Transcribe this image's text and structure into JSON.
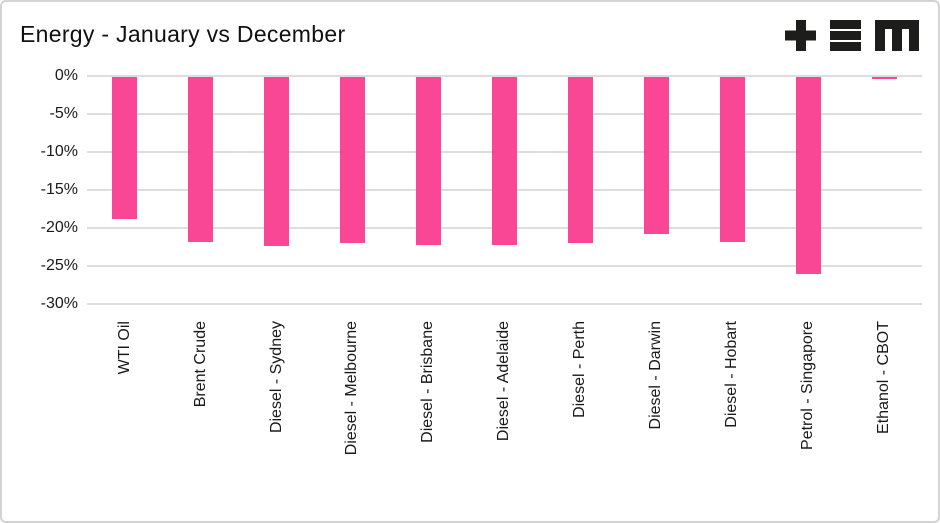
{
  "header": {
    "title": "Energy - January vs December"
  },
  "logo": {
    "name": "tem-logo",
    "glyphs": [
      "plus",
      "triple-bar",
      "m"
    ],
    "color": "#1d1d1b"
  },
  "colors": {
    "background": "#ffffff",
    "card_border": "#d3d3d3",
    "gridline": "#dddddd",
    "bar": "#fa4795",
    "text": "#1a1a1a"
  },
  "chart_data": {
    "type": "bar",
    "title": "Energy - January vs December",
    "orientation": "vertical",
    "categories": [
      "WTI Oil",
      "Brent Crude",
      "Diesel - Sydney",
      "Diesel - Melbourne",
      "Diesel - Brisbane",
      "Diesel - Adelaide",
      "Diesel - Perth",
      "Diesel - Darwin",
      "Diesel - Hobart",
      "Petrol - Singapore",
      "Ethanol - CBOT"
    ],
    "values": [
      -18.7,
      -21.7,
      -22.2,
      -21.9,
      -22.1,
      -22.1,
      -21.8,
      -20.7,
      -21.7,
      -25.9,
      -0.3
    ],
    "unit": "%",
    "xlabel": "",
    "ylabel": "",
    "ylim": [
      -30,
      0
    ],
    "ytick_values": [
      0,
      -5,
      -10,
      -15,
      -20,
      -25,
      -30
    ],
    "ytick_labels": [
      "0%",
      "-5%",
      "-10%",
      "-15%",
      "-20%",
      "-25%",
      "-30%"
    ],
    "grid": "horizontal",
    "legend": "none",
    "bar_color": "#fa4795"
  }
}
